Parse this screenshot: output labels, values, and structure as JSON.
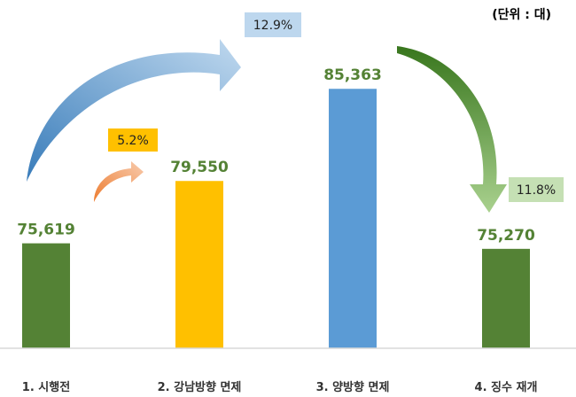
{
  "chart_data": {
    "type": "bar",
    "unit_label": "(단위 : 대)",
    "categories": [
      "1. 시행전",
      "2. 강남방향 면제",
      "3. 양방향 면제",
      "4. 징수 재개"
    ],
    "values": [
      75619,
      79550,
      85363,
      75270
    ],
    "value_labels": [
      "75,619",
      "79,550",
      "85,363",
      "75,270"
    ],
    "bar_colors": [
      "#548235",
      "#ffc000",
      "#5b9bd5",
      "#548235"
    ],
    "value_label_color": "#548235",
    "ylim": [
      69000,
      87500
    ],
    "grid": false,
    "annotations": [
      {
        "text": "5.2%",
        "from_category": 0,
        "to_category": 1,
        "box_color": "#ffc000",
        "arrow_color": "#f4a46b"
      },
      {
        "text": "12.9%",
        "from_category": 0,
        "to_category": 2,
        "box_color": "#bdd7ee",
        "arrow_color": "#5b9bd5"
      },
      {
        "text": "11.8%",
        "from_category": 2,
        "to_category": 3,
        "box_color": "#c5e0b4",
        "arrow_color": "#70ad47"
      }
    ]
  }
}
